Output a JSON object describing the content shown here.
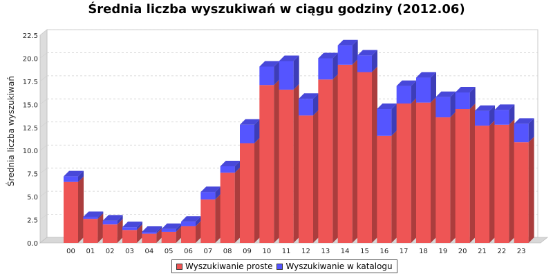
{
  "chart_data": {
    "type": "bar",
    "stacked": true,
    "three_d": true,
    "title": "Średnia liczba wyszukiwań w ciągu godziny (2012.06)",
    "xlabel": "",
    "ylabel": "Średnia liczba wyszukiwań",
    "ylim": [
      0,
      22.5
    ],
    "yticks": [
      "0.0",
      "2.5",
      "5.0",
      "7.5",
      "10.0",
      "12.5",
      "15.0",
      "17.5",
      "20.0",
      "22.5"
    ],
    "grid": true,
    "legend_position": "bottom",
    "categories": [
      "00",
      "01",
      "02",
      "03",
      "04",
      "05",
      "06",
      "07",
      "08",
      "09",
      "10",
      "11",
      "12",
      "13",
      "14",
      "15",
      "16",
      "17",
      "18",
      "19",
      "20",
      "21",
      "22",
      "23"
    ],
    "series": [
      {
        "name": "Wyszukiwanie proste",
        "color": "#ee5555",
        "values": [
          6.6,
          2.6,
          2.0,
          1.4,
          1.0,
          1.2,
          1.8,
          4.7,
          7.6,
          10.8,
          17.1,
          16.6,
          13.8,
          17.7,
          19.3,
          18.5,
          11.6,
          15.1,
          15.2,
          13.6,
          14.5,
          12.7,
          12.8,
          10.9
        ]
      },
      {
        "name": "Wyszukiwanie w katalogu",
        "color": "#5555ff",
        "values": [
          0.6,
          0.2,
          0.4,
          0.3,
          0.2,
          0.3,
          0.5,
          0.8,
          0.7,
          2.0,
          2.0,
          3.1,
          1.8,
          2.3,
          2.1,
          1.8,
          2.9,
          1.9,
          2.7,
          2.2,
          1.8,
          1.6,
          1.6,
          2.0
        ]
      }
    ]
  }
}
